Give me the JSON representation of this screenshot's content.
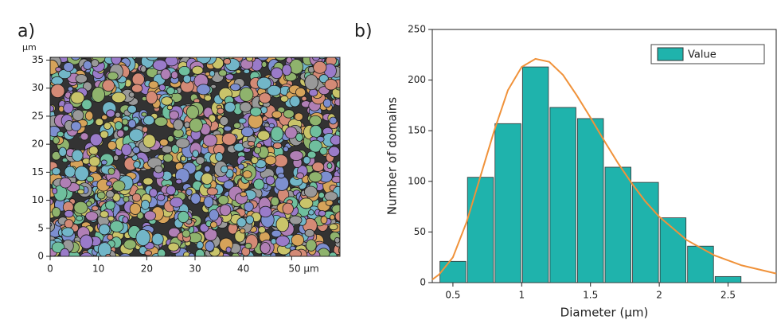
{
  "chart_data": [
    {
      "type": "image",
      "panel_label": "a)",
      "y_unit": "µm",
      "xlim": [
        0,
        60
      ],
      "xticks": [
        0,
        10,
        20,
        30,
        40,
        {
          "value": 50,
          "label": "50 µm"
        }
      ],
      "ylim": [
        0,
        35.5
      ],
      "yticks": [
        0,
        5,
        10,
        15,
        20,
        25,
        30,
        35
      ]
    },
    {
      "type": "histogram",
      "panel_label": "b)",
      "x_label": "Diameter (µm)",
      "y_label": "Number of domains",
      "bins": [
        0.4,
        0.6,
        0.8,
        1.0,
        1.2,
        1.4,
        1.6,
        1.8,
        2.0,
        2.2,
        2.4,
        2.6
      ],
      "series": [
        {
          "name": "Value",
          "color": "#1fb3ac",
          "values": [
            21,
            104,
            157,
            213,
            173,
            162,
            114,
            99,
            64,
            36,
            6
          ]
        }
      ],
      "fit": {
        "color": "#f0923a",
        "x": [
          0.35,
          0.4,
          0.5,
          0.6,
          0.7,
          0.8,
          0.9,
          1.0,
          1.1,
          1.2,
          1.3,
          1.4,
          1.5,
          1.6,
          1.7,
          1.8,
          1.9,
          2.0,
          2.2,
          2.4,
          2.6,
          2.85
        ],
        "values": [
          3,
          8,
          25,
          60,
          105,
          150,
          190,
          213,
          221,
          218,
          205,
          185,
          163,
          140,
          118,
          98,
          80,
          65,
          42,
          27,
          17,
          9
        ]
      },
      "xlim": [
        0.35,
        2.85
      ],
      "xticks": [
        0.5,
        1.0,
        1.5,
        2.0,
        2.5
      ],
      "ylim": [
        0,
        250
      ],
      "yticks": [
        0,
        50,
        100,
        150,
        200,
        250
      ],
      "legend": "upper right"
    }
  ]
}
